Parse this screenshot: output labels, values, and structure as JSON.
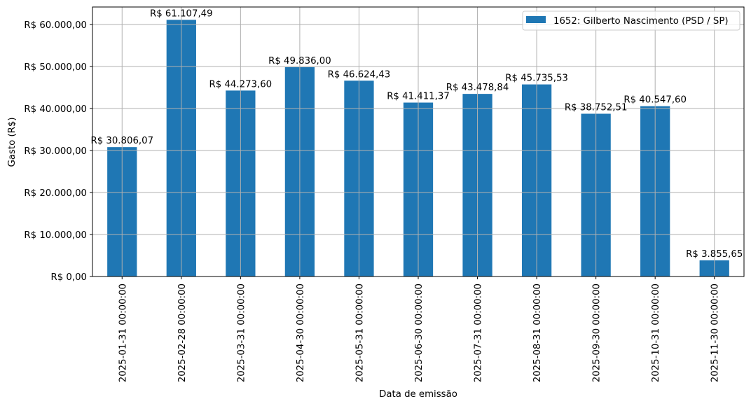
{
  "chart_data": {
    "type": "bar",
    "title": "",
    "xlabel": "Data de emissão",
    "ylabel": "Gasto (R$)",
    "ylim": [
      0,
      64166
    ],
    "grid": true,
    "legend_position": "upper right",
    "bar_color": "#1f77b4",
    "categories": [
      "2025-01-31 00:00:00",
      "2025-02-28 00:00:00",
      "2025-03-31 00:00:00",
      "2025-04-30 00:00:00",
      "2025-05-31 00:00:00",
      "2025-06-30 00:00:00",
      "2025-07-31 00:00:00",
      "2025-08-31 00:00:00",
      "2025-09-30 00:00:00",
      "2025-10-31 00:00:00",
      "2025-11-30 00:00:00"
    ],
    "series": [
      {
        "name": "1652: Gilberto Nascimento (PSD / SP)",
        "values": [
          30806.07,
          61107.49,
          44273.6,
          49836.0,
          46624.43,
          41411.37,
          43478.84,
          45735.53,
          38752.51,
          40547.6,
          3855.65
        ],
        "labels": [
          "R$ 30.806,07",
          "R$ 61.107,49",
          "R$ 44.273,60",
          "R$ 49.836,00",
          "R$ 46.624,43",
          "R$ 41.411,37",
          "R$ 43.478,84",
          "R$ 45.735,53",
          "R$ 38.752,51",
          "R$ 40.547,60",
          "R$ 3.855,65"
        ]
      }
    ],
    "yticks": [
      0,
      10000,
      20000,
      30000,
      40000,
      50000,
      60000
    ],
    "ytick_labels": [
      "R$ 0,00",
      "R$ 10.000,00",
      "R$ 20.000,00",
      "R$ 30.000,00",
      "R$ 40.000,00",
      "R$ 50.000,00",
      "R$ 60.000,00"
    ]
  }
}
